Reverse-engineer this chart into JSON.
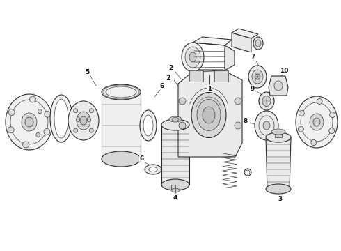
{
  "bg_color": "#ffffff",
  "line_color": "#2a2a2a",
  "label_color": "#111111",
  "lw_main": 0.8,
  "lw_thin": 0.45,
  "lw_thick": 1.0,
  "figsize": [
    4.9,
    3.6
  ],
  "dpi": 100,
  "ax_aspect": "auto",
  "xlim": [
    0,
    490
  ],
  "ylim": [
    0,
    360
  ]
}
